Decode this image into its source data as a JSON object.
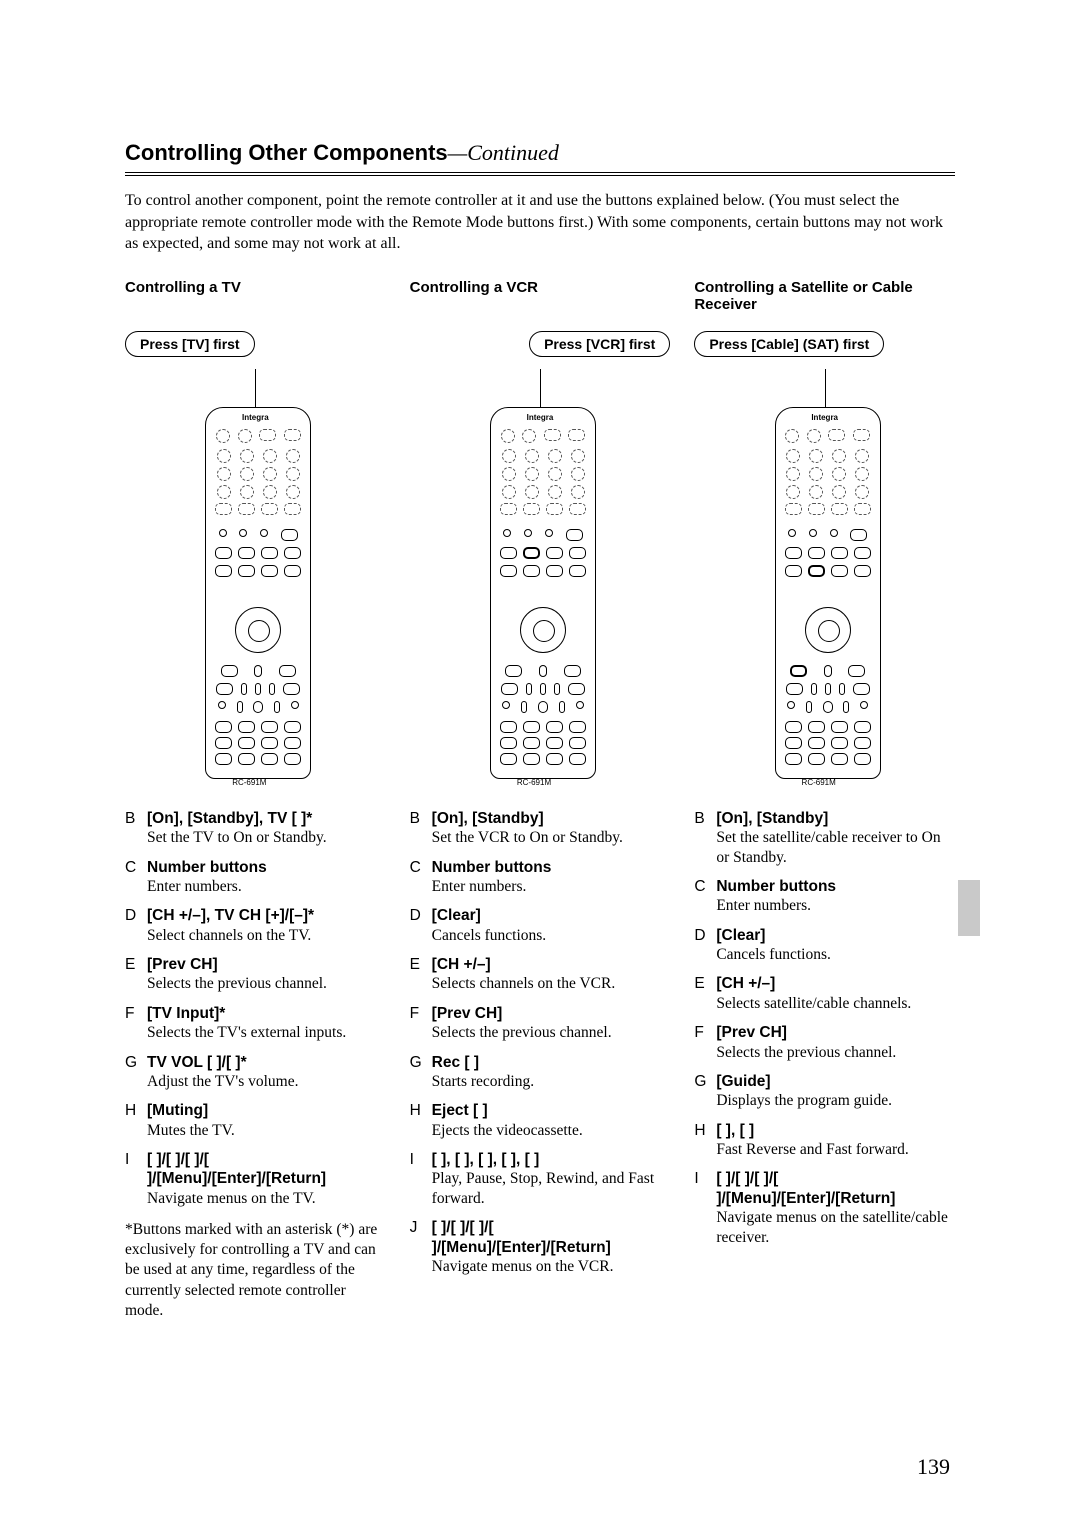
{
  "header": {
    "title": "Controlling Other Components",
    "continued": "—Continued"
  },
  "intro": "To control another component, point the remote controller at it and use the buttons explained below. (You must select the appropriate remote controller mode with the Remote Mode buttons first.) With some components, certain buttons may not work as expected, and some may not work at all.",
  "remote": {
    "brand": "Integra",
    "model": "RC-691M"
  },
  "tv": {
    "title": "Controlling a TV",
    "press": "Press [TV] first",
    "items": [
      {
        "letter": "B",
        "label": "[On], [Standby], TV [   ]*",
        "desc": "Set the TV to On or Standby."
      },
      {
        "letter": "C",
        "label": "Number buttons",
        "desc": "Enter numbers."
      },
      {
        "letter": "D",
        "label": "[CH +/–], TV CH [+]/[–]*",
        "desc": "Select channels on the TV."
      },
      {
        "letter": "E",
        "label": "[Prev CH]",
        "desc": "Selects the previous channel."
      },
      {
        "letter": "F",
        "label": "[TV Input]*",
        "desc": "Selects the TV's external inputs."
      },
      {
        "letter": "G",
        "label": "TV VOL [ ]/[ ]*",
        "desc": "Adjust the TV's volume."
      },
      {
        "letter": "H",
        "label": "[Muting]",
        "desc": "Mutes the TV."
      },
      {
        "letter": "I",
        "label": "[ ]/[ ]/[ ]/[ ]/[Menu]/[Enter]/[Return]",
        "desc": "Navigate menus on the TV."
      }
    ],
    "footnote": "*Buttons marked with an asterisk (*) are exclusively for controlling a TV and can be used at any time, regardless of the currently selected remote controller mode."
  },
  "vcr": {
    "title": "Controlling a VCR",
    "press": "Press [VCR] first",
    "items": [
      {
        "letter": "B",
        "label": "[On], [Standby]",
        "desc": "Set the VCR to On or Standby."
      },
      {
        "letter": "C",
        "label": "Number buttons",
        "desc": "Enter numbers."
      },
      {
        "letter": "D",
        "label": "[Clear]",
        "desc": "Cancels functions."
      },
      {
        "letter": "E",
        "label": "[CH +/–]",
        "desc": "Selects channels on the VCR."
      },
      {
        "letter": "F",
        "label": "[Prev CH]",
        "desc": "Selects the previous channel."
      },
      {
        "letter": "G",
        "label": "Rec [  ]",
        "desc": "Starts recording."
      },
      {
        "letter": "H",
        "label": "Eject [   ]",
        "desc": "Ejects the videocassette."
      },
      {
        "letter": "I",
        "label": "[   ], [   ], [   ], [   ], [   ]",
        "desc": "Play, Pause, Stop, Rewind, and Fast forward."
      },
      {
        "letter": "J",
        "label": "[ ]/[ ]/[ ]/[ ]/[Menu]/[Enter]/[Return]",
        "desc": "Navigate menus on the VCR."
      }
    ]
  },
  "sat": {
    "title": "Controlling a Satellite or Cable Receiver",
    "press": "Press [Cable] (SAT) first",
    "items": [
      {
        "letter": "B",
        "label": "[On], [Standby]",
        "desc": "Set the satellite/cable receiver to On or Standby."
      },
      {
        "letter": "C",
        "label": "Number buttons",
        "desc": "Enter numbers."
      },
      {
        "letter": "D",
        "label": "[Clear]",
        "desc": "Cancels functions."
      },
      {
        "letter": "E",
        "label": "[CH +/–]",
        "desc": "Selects satellite/cable channels."
      },
      {
        "letter": "F",
        "label": "[Prev CH]",
        "desc": "Selects the previous channel."
      },
      {
        "letter": "G",
        "label": "[Guide]",
        "desc": "Displays the program guide."
      },
      {
        "letter": "H",
        "label": "[   ], [   ]",
        "desc": "Fast Reverse and Fast forward."
      },
      {
        "letter": "I",
        "label": "[ ]/[ ]/[ ]/[ ]/[Menu]/[Enter]/[Return]",
        "desc": "Navigate menus on the satellite/cable receiver."
      }
    ]
  },
  "page_number": "139"
}
